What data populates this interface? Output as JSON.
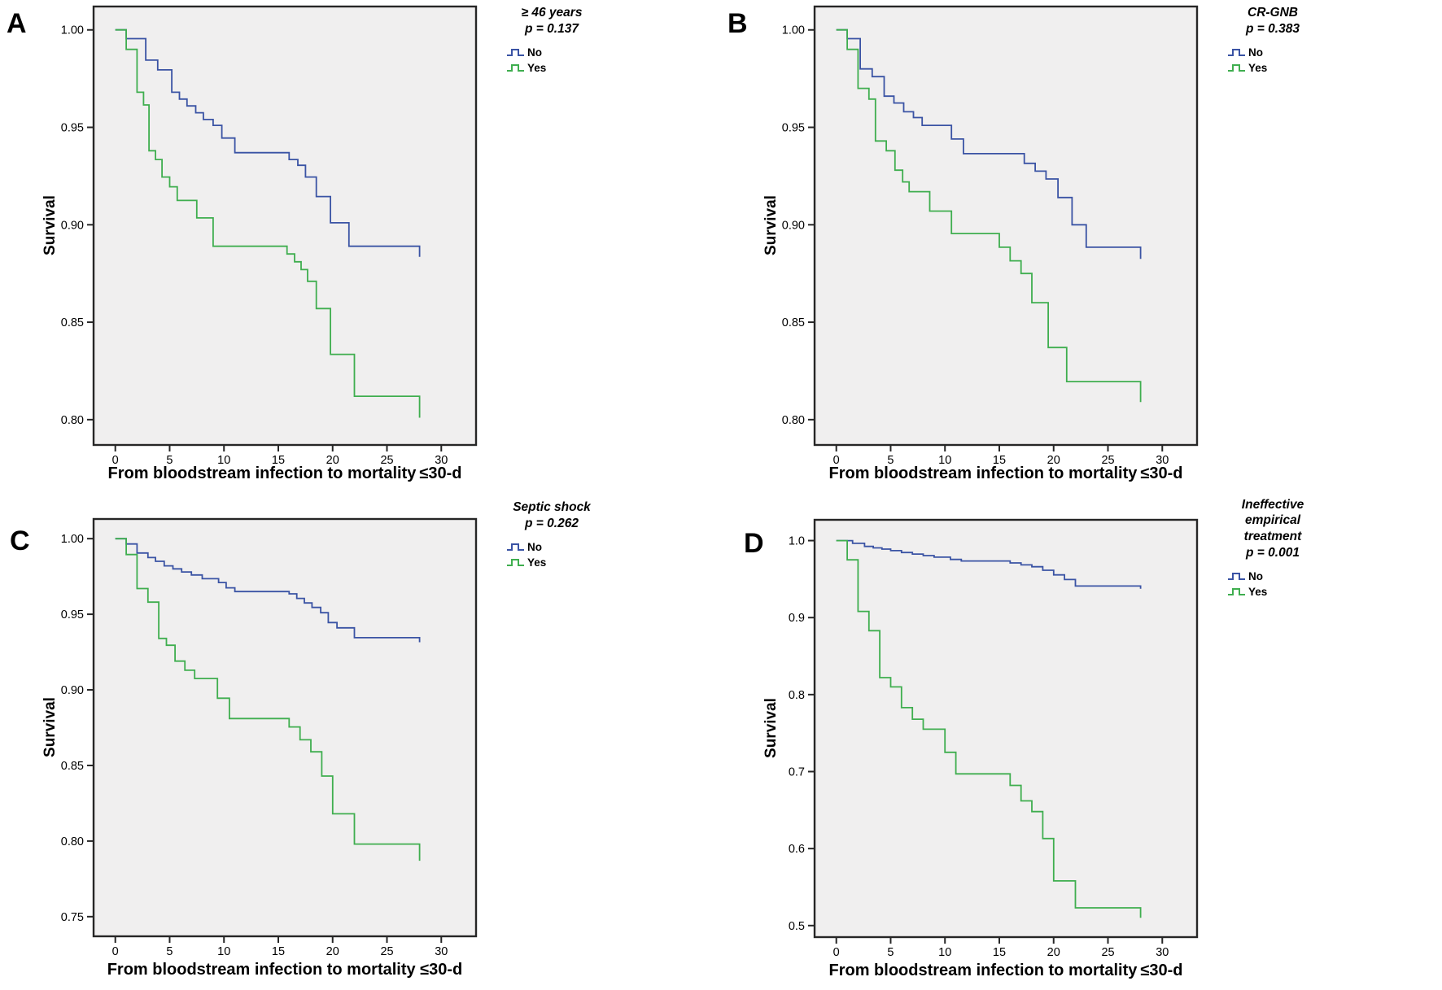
{
  "figure": {
    "background": "#ffffff",
    "plot_background": "#f0efef",
    "frame_color": "#262626",
    "tick_color": "#262626",
    "text_color": "#000000",
    "group_colors": {
      "no": "#3a53a4",
      "yes": "#3fae4f"
    }
  },
  "chart_data": [
    {
      "panel_label": "A",
      "type": "line",
      "step": true,
      "legend_title_lines": [
        "≥ 46 years"
      ],
      "p_value": "p = 0.137",
      "legend_position": "right-top",
      "grid": false,
      "xlabel": "From bloodstream infection to mortality ≤30-d",
      "ylabel": "Survival",
      "x_ticks": [
        0,
        5,
        10,
        15,
        20,
        25,
        30
      ],
      "y_tick_values": [
        1.0,
        0.95,
        0.9,
        0.85,
        0.8
      ],
      "y_tick_labels": [
        "1.00",
        "0.95",
        "0.90",
        "0.85",
        "0.80"
      ],
      "xlim": [
        -2,
        33.2
      ],
      "ylim": [
        0.787,
        1.012
      ],
      "series": [
        {
          "name": "No",
          "color": "#3a53a4",
          "points": [
            [
              0,
              1.0
            ],
            [
              1,
              0.9955
            ],
            [
              2.8,
              0.9845
            ],
            [
              3.9,
              0.9795
            ],
            [
              5.2,
              0.968
            ],
            [
              5.9,
              0.9645
            ],
            [
              6.6,
              0.961
            ],
            [
              7.4,
              0.9575
            ],
            [
              8.1,
              0.954
            ],
            [
              9,
              0.951
            ],
            [
              9.8,
              0.9445
            ],
            [
              11,
              0.937
            ],
            [
              16,
              0.9335
            ],
            [
              16.8,
              0.9305
            ],
            [
              17.5,
              0.9245
            ],
            [
              18.5,
              0.9145
            ],
            [
              19.8,
              0.901
            ],
            [
              21.5,
              0.889
            ],
            [
              28,
              0.8835
            ]
          ]
        },
        {
          "name": "Yes",
          "color": "#3fae4f",
          "points": [
            [
              0,
              1.0
            ],
            [
              1,
              0.99
            ],
            [
              2,
              0.968
            ],
            [
              2.6,
              0.9615
            ],
            [
              3.1,
              0.938
            ],
            [
              3.7,
              0.9335
            ],
            [
              4.3,
              0.9245
            ],
            [
              5,
              0.9195
            ],
            [
              5.7,
              0.9125
            ],
            [
              7.5,
              0.9035
            ],
            [
              9,
              0.889
            ],
            [
              15.8,
              0.885
            ],
            [
              16.5,
              0.881
            ],
            [
              17.1,
              0.877
            ],
            [
              17.7,
              0.871
            ],
            [
              18.5,
              0.857
            ],
            [
              19.8,
              0.8335
            ],
            [
              22,
              0.812
            ],
            [
              28,
              0.801
            ]
          ]
        }
      ]
    },
    {
      "panel_label": "B",
      "type": "line",
      "step": true,
      "legend_title_lines": [
        "CR-GNB"
      ],
      "p_value": "p = 0.383",
      "legend_position": "right-top",
      "grid": false,
      "xlabel": "From bloodstream infection to mortality ≤30-d",
      "ylabel": "Survival",
      "x_ticks": [
        0,
        5,
        10,
        15,
        20,
        25,
        30
      ],
      "y_tick_values": [
        1.0,
        0.95,
        0.9,
        0.85,
        0.8
      ],
      "y_tick_labels": [
        "1.00",
        "0.95",
        "0.90",
        "0.85",
        "0.80"
      ],
      "xlim": [
        -2,
        33.2
      ],
      "ylim": [
        0.787,
        1.012
      ],
      "series": [
        {
          "name": "No",
          "color": "#3a53a4",
          "points": [
            [
              0,
              1.0
            ],
            [
              1,
              0.9955
            ],
            [
              2.2,
              0.98
            ],
            [
              3.3,
              0.976
            ],
            [
              4.4,
              0.966
            ],
            [
              5.3,
              0.9625
            ],
            [
              6.2,
              0.958
            ],
            [
              7.1,
              0.955
            ],
            [
              7.9,
              0.951
            ],
            [
              10.6,
              0.944
            ],
            [
              11.7,
              0.9365
            ],
            [
              17.3,
              0.9315
            ],
            [
              18.3,
              0.9275
            ],
            [
              19.3,
              0.9235
            ],
            [
              20.4,
              0.914
            ],
            [
              21.7,
              0.9
            ],
            [
              23,
              0.8885
            ],
            [
              28,
              0.8825
            ]
          ]
        },
        {
          "name": "Yes",
          "color": "#3fae4f",
          "points": [
            [
              0,
              1.0
            ],
            [
              1,
              0.99
            ],
            [
              2,
              0.97
            ],
            [
              3,
              0.9645
            ],
            [
              3.6,
              0.943
            ],
            [
              4.6,
              0.938
            ],
            [
              5.4,
              0.928
            ],
            [
              6.1,
              0.922
            ],
            [
              6.7,
              0.917
            ],
            [
              8.6,
              0.907
            ],
            [
              10.6,
              0.8955
            ],
            [
              15,
              0.8885
            ],
            [
              16,
              0.8815
            ],
            [
              17,
              0.875
            ],
            [
              18,
              0.86
            ],
            [
              19.5,
              0.837
            ],
            [
              21.2,
              0.8195
            ],
            [
              28,
              0.809
            ]
          ]
        }
      ]
    },
    {
      "panel_label": "C",
      "type": "line",
      "step": true,
      "legend_title_lines": [
        "Septic shock"
      ],
      "p_value": "p = 0.262",
      "legend_position": "right-top",
      "grid": false,
      "xlabel": "From bloodstream infection to mortality ≤30-d",
      "ylabel": "Survival",
      "x_ticks": [
        0,
        5,
        10,
        15,
        20,
        25,
        30
      ],
      "y_tick_values": [
        1.0,
        0.95,
        0.9,
        0.85,
        0.8,
        0.75
      ],
      "y_tick_labels": [
        "1.00",
        "0.95",
        "0.90",
        "0.85",
        "0.80",
        "0.75"
      ],
      "xlim": [
        -2,
        33.2
      ],
      "ylim": [
        0.737,
        1.013
      ],
      "series": [
        {
          "name": "No",
          "color": "#3a53a4",
          "points": [
            [
              0,
              1.0
            ],
            [
              1,
              0.9965
            ],
            [
              2,
              0.9905
            ],
            [
              3,
              0.9875
            ],
            [
              3.7,
              0.985
            ],
            [
              4.5,
              0.982
            ],
            [
              5.3,
              0.98
            ],
            [
              6.1,
              0.978
            ],
            [
              7,
              0.976
            ],
            [
              8,
              0.9735
            ],
            [
              9.5,
              0.971
            ],
            [
              10.2,
              0.9675
            ],
            [
              11,
              0.965
            ],
            [
              16,
              0.9635
            ],
            [
              16.7,
              0.9605
            ],
            [
              17.4,
              0.9575
            ],
            [
              18.1,
              0.9545
            ],
            [
              18.9,
              0.951
            ],
            [
              19.6,
              0.9445
            ],
            [
              20.4,
              0.941
            ],
            [
              22,
              0.9345
            ],
            [
              28,
              0.9315
            ]
          ]
        },
        {
          "name": "Yes",
          "color": "#3fae4f",
          "points": [
            [
              0,
              1.0
            ],
            [
              1,
              0.9895
            ],
            [
              2,
              0.967
            ],
            [
              3,
              0.958
            ],
            [
              4,
              0.934
            ],
            [
              4.7,
              0.9295
            ],
            [
              5.5,
              0.919
            ],
            [
              6.4,
              0.913
            ],
            [
              7.3,
              0.9075
            ],
            [
              9.4,
              0.8945
            ],
            [
              10.5,
              0.881
            ],
            [
              16,
              0.8755
            ],
            [
              17,
              0.867
            ],
            [
              18,
              0.859
            ],
            [
              19,
              0.843
            ],
            [
              20,
              0.818
            ],
            [
              22,
              0.798
            ],
            [
              28,
              0.787
            ]
          ]
        }
      ]
    },
    {
      "panel_label": "D",
      "type": "line",
      "step": true,
      "legend_title_lines": [
        "Ineffective",
        "empirical",
        "treatment"
      ],
      "p_value": "p = 0.001",
      "legend_position": "right-top",
      "grid": false,
      "xlabel": "From bloodstream infection to mortality ≤30-d",
      "ylabel": "Survival",
      "x_ticks": [
        0,
        5,
        10,
        15,
        20,
        25,
        30
      ],
      "y_tick_values": [
        1.0,
        0.9,
        0.8,
        0.7,
        0.6,
        0.5
      ],
      "y_tick_labels": [
        "1.0",
        "0.9",
        "0.8",
        "0.7",
        "0.6",
        "0.5"
      ],
      "xlim": [
        -2,
        33.2
      ],
      "ylim": [
        0.485,
        1.027
      ],
      "series": [
        {
          "name": "No",
          "color": "#3a53a4",
          "points": [
            [
              0,
              1.0
            ],
            [
              1.5,
              0.9965
            ],
            [
              2.6,
              0.9925
            ],
            [
              3.4,
              0.9905
            ],
            [
              4.2,
              0.989
            ],
            [
              5,
              0.987
            ],
            [
              6,
              0.9845
            ],
            [
              7,
              0.9825
            ],
            [
              8,
              0.9805
            ],
            [
              9,
              0.9785
            ],
            [
              10.5,
              0.9755
            ],
            [
              11.5,
              0.9735
            ],
            [
              16,
              0.971
            ],
            [
              17,
              0.9685
            ],
            [
              18,
              0.966
            ],
            [
              19,
              0.9615
            ],
            [
              20,
              0.9555
            ],
            [
              21,
              0.9495
            ],
            [
              22,
              0.941
            ],
            [
              28,
              0.9375
            ]
          ]
        },
        {
          "name": "Yes",
          "color": "#3fae4f",
          "points": [
            [
              0,
              1.0
            ],
            [
              1,
              0.975
            ],
            [
              2,
              0.908
            ],
            [
              3,
              0.883
            ],
            [
              4,
              0.822
            ],
            [
              5,
              0.81
            ],
            [
              6,
              0.783
            ],
            [
              7,
              0.768
            ],
            [
              8,
              0.755
            ],
            [
              10,
              0.725
            ],
            [
              11,
              0.697
            ],
            [
              16,
              0.682
            ],
            [
              17,
              0.662
            ],
            [
              18,
              0.648
            ],
            [
              19,
              0.613
            ],
            [
              20,
              0.558
            ],
            [
              22,
              0.523
            ],
            [
              28,
              0.51
            ]
          ]
        }
      ]
    }
  ]
}
